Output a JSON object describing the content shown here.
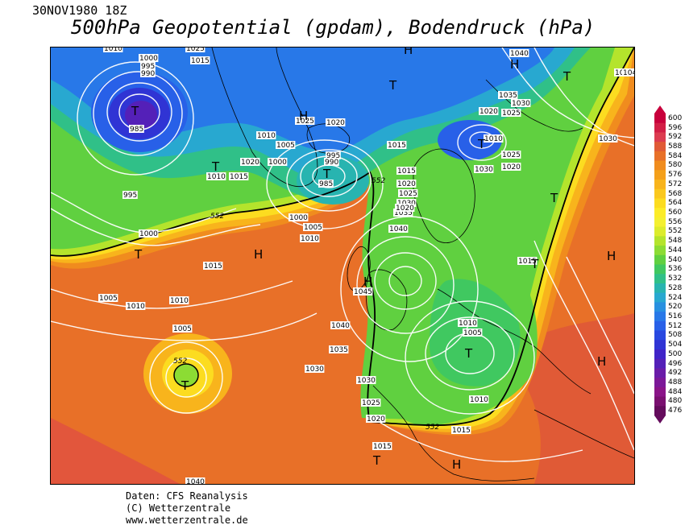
{
  "header": {
    "date": "30NOV1980 18Z",
    "title": "500hPa Geopotential (gpdam), Bodendruck (hPa)"
  },
  "footer": {
    "line1": "Daten: CFS Reanalysis",
    "line2": "(C) Wetterzentrale",
    "line3": "www.wetterzentrale.de"
  },
  "legend": {
    "values": [
      "600",
      "596",
      "592",
      "588",
      "584",
      "580",
      "576",
      "572",
      "568",
      "564",
      "560",
      "556",
      "552",
      "548",
      "544",
      "540",
      "536",
      "532",
      "528",
      "524",
      "520",
      "516",
      "512",
      "508",
      "504",
      "500",
      "496",
      "492",
      "488",
      "484",
      "480",
      "476"
    ],
    "colors": [
      "#c8003c",
      "#d21e46",
      "#dc3c50",
      "#e05a36",
      "#e87028",
      "#f08c1e",
      "#f4a01a",
      "#f8b41c",
      "#fac81e",
      "#fcdc20",
      "#fcec28",
      "#f4f030",
      "#dcec2c",
      "#b4e42c",
      "#8cdc34",
      "#60d040",
      "#40c860",
      "#30c088",
      "#28b4b0",
      "#28a8d0",
      "#2890e0",
      "#2878e8",
      "#2860e8",
      "#2848e0",
      "#3034d4",
      "#4024c8",
      "#5420b8",
      "#6a1ca8",
      "#7c1898",
      "#8a1488",
      "#7a1070",
      "#640c5c"
    ]
  },
  "map": {
    "contour_552_label": "552",
    "pressure_labels": [
      "1010",
      "1000",
      "995",
      "990",
      "1025",
      "1015",
      "1040",
      "1035",
      "1030",
      "1025",
      "1020",
      "1040",
      "985",
      "1025",
      "1020",
      "1010",
      "1005",
      "1000",
      "995",
      "990",
      "985",
      "1015",
      "1010",
      "1015",
      "1020",
      "1010",
      "1020",
      "1030",
      "1025",
      "995",
      "1000",
      "1000",
      "1005",
      "1010",
      "1015",
      "1020",
      "1025",
      "1030",
      "1035",
      "1040",
      "1015",
      "1020",
      "1015",
      "1005",
      "1010",
      "1010",
      "1005",
      "1045",
      "1040",
      "1035",
      "1030",
      "1030",
      "1025",
      "1020",
      "1010",
      "1005",
      "1010",
      "1015",
      "1015",
      "1040",
      "1030",
      "1040"
    ],
    "highs": [
      "H",
      "H",
      "H",
      "H",
      "H",
      "H",
      "H",
      "H"
    ],
    "lows": [
      "T",
      "T",
      "T",
      "T",
      "T",
      "T",
      "T",
      "T",
      "T",
      "T",
      "T",
      "T"
    ]
  }
}
